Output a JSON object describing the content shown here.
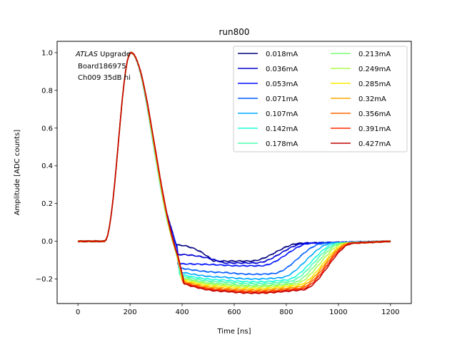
{
  "chart_data": {
    "type": "line",
    "title": "run800",
    "xlabel": "Time [ns]",
    "ylabel": "Amplitude [ADC counts]",
    "xlim": [
      -80,
      1280
    ],
    "ylim": [
      -0.33,
      1.06
    ],
    "xticks": [
      0,
      200,
      400,
      600,
      800,
      1000,
      1200
    ],
    "yticks": [
      -0.2,
      0.0,
      0.2,
      0.4,
      0.6,
      0.8,
      1.0
    ],
    "xtick_labels": [
      "0",
      "200",
      "400",
      "600",
      "800",
      "1000",
      "1200"
    ],
    "ytick_labels": [
      "−0.2",
      "0.0",
      "0.2",
      "0.4",
      "0.6",
      "0.8",
      "1.0"
    ],
    "grid": false,
    "legend_placement": "top-right",
    "legend_columns": 2,
    "annotation": {
      "italic": "ATLAS",
      "line1_rest": " Upgrade",
      "line2": "Board186975",
      "line3": "Ch009 35dB hi"
    },
    "series": [
      {
        "name": "0.018mA",
        "color": "#00007f",
        "plateau": -0.105,
        "undershoot_end": 860
      },
      {
        "name": "0.036mA",
        "color": "#0000d1",
        "plateau": -0.115,
        "undershoot_end": 880
      },
      {
        "name": "0.053mA",
        "color": "#0010ff",
        "plateau": -0.13,
        "undershoot_end": 900
      },
      {
        "name": "0.071mA",
        "color": "#005cff",
        "plateau": -0.165,
        "undershoot_end": 950
      },
      {
        "name": "0.107mA",
        "color": "#00a8ff",
        "plateau": -0.19,
        "undershoot_end": 980
      },
      {
        "name": "0.142mA",
        "color": "#1cffdb",
        "plateau": -0.205,
        "undershoot_end": 1000
      },
      {
        "name": "0.178mA",
        "color": "#4affad",
        "plateau": -0.215,
        "undershoot_end": 1010
      },
      {
        "name": "0.213mA",
        "color": "#7cff79",
        "plateau": -0.225,
        "undershoot_end": 1020
      },
      {
        "name": "0.249mA",
        "color": "#adff4a",
        "plateau": -0.232,
        "undershoot_end": 1030
      },
      {
        "name": "0.285mA",
        "color": "#ffea00",
        "plateau": -0.24,
        "undershoot_end": 1040
      },
      {
        "name": "0.32mA",
        "color": "#ffa600",
        "plateau": -0.248,
        "undershoot_end": 1045
      },
      {
        "name": "0.356mA",
        "color": "#ff6800",
        "plateau": -0.255,
        "undershoot_end": 1050
      },
      {
        "name": "0.391mA",
        "color": "#ff2900",
        "plateau": -0.26,
        "undershoot_end": 1055
      },
      {
        "name": "0.427mA",
        "color": "#c00000",
        "plateau": -0.265,
        "undershoot_end": 1060
      }
    ]
  }
}
